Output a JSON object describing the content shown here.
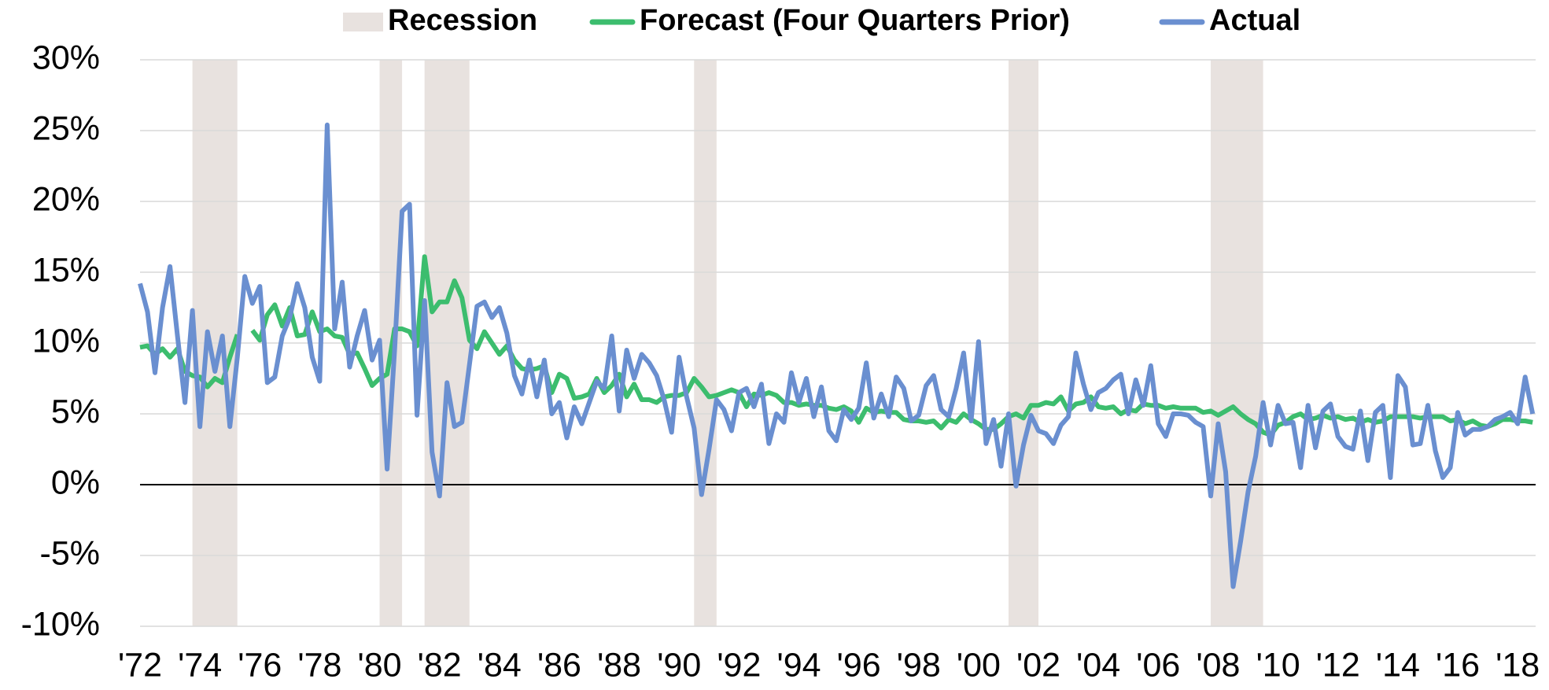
{
  "chart_data": {
    "type": "line",
    "recessions": {
      "name": "Recession",
      "color": "#e8e2df",
      "spans": [
        [
          1973.75,
          1975.25
        ],
        [
          1980.0,
          1980.75
        ],
        [
          1981.5,
          1983.0
        ],
        [
          1990.5,
          1991.25
        ],
        [
          2001.0,
          2002.0
        ],
        [
          2007.75,
          2009.5
        ]
      ]
    },
    "x": [
      1972,
      1972.25,
      1972.5,
      1972.75,
      1973,
      1973.25,
      1973.5,
      1973.75,
      1974,
      1974.25,
      1974.5,
      1974.75,
      1975,
      1975.25,
      1975.5,
      1975.75,
      1976,
      1976.25,
      1976.5,
      1976.75,
      1977,
      1977.25,
      1977.5,
      1977.75,
      1978,
      1978.25,
      1978.5,
      1978.75,
      1979,
      1979.25,
      1979.5,
      1979.75,
      1980,
      1980.25,
      1980.5,
      1980.75,
      1981,
      1981.25,
      1981.5,
      1981.75,
      1982,
      1982.25,
      1982.5,
      1982.75,
      1983,
      1983.25,
      1983.5,
      1983.75,
      1984,
      1984.25,
      1984.5,
      1984.75,
      1985,
      1985.25,
      1985.5,
      1985.75,
      1986,
      1986.25,
      1986.5,
      1986.75,
      1987,
      1987.25,
      1987.5,
      1987.75,
      1988,
      1988.25,
      1988.5,
      1988.75,
      1989,
      1989.25,
      1989.5,
      1989.75,
      1990,
      1990.25,
      1990.5,
      1990.75,
      1991,
      1991.25,
      1991.5,
      1991.75,
      1992,
      1992.25,
      1992.5,
      1992.75,
      1993,
      1993.25,
      1993.5,
      1993.75,
      1994,
      1994.25,
      1994.5,
      1994.75,
      1995,
      1995.25,
      1995.5,
      1995.75,
      1996,
      1996.25,
      1996.5,
      1996.75,
      1997,
      1997.25,
      1997.5,
      1997.75,
      1998,
      1998.25,
      1998.5,
      1998.75,
      1999,
      1999.25,
      1999.5,
      1999.75,
      2000,
      2000.25,
      2000.5,
      2000.75,
      2001,
      2001.25,
      2001.5,
      2001.75,
      2002,
      2002.25,
      2002.5,
      2002.75,
      2003,
      2003.25,
      2003.5,
      2003.75,
      2004,
      2004.25,
      2004.5,
      2004.75,
      2005,
      2005.25,
      2005.5,
      2005.75,
      2006,
      2006.25,
      2006.5,
      2006.75,
      2007,
      2007.25,
      2007.5,
      2007.75,
      2008,
      2008.25,
      2008.5,
      2008.75,
      2009,
      2009.25,
      2009.5,
      2009.75,
      2010,
      2010.25,
      2010.5,
      2010.75,
      2011,
      2011.25,
      2011.5,
      2011.75,
      2012,
      2012.25,
      2012.5,
      2012.75,
      2013,
      2013.25,
      2013.5,
      2013.75,
      2014,
      2014.25,
      2014.5,
      2014.75,
      2015,
      2015.25,
      2015.5,
      2015.75,
      2016,
      2016.25,
      2016.5,
      2016.75,
      2017,
      2017.25,
      2017.5,
      2017.75,
      2018,
      2018.25,
      2018.5
    ],
    "series": [
      {
        "name": "Forecast (Four Quarters Prior)",
        "color": "#3cbd6e",
        "values": [
          9.7,
          9.8,
          9.2,
          9.6,
          9.0,
          9.6,
          8.0,
          7.7,
          7.6,
          6.9,
          7.5,
          7.2,
          9.0,
          10.6,
          null,
          10.9,
          10.2,
          12.0,
          12.7,
          11.2,
          12.5,
          10.5,
          10.6,
          12.2,
          10.8,
          11.0,
          10.5,
          10.4,
          9.2,
          9.3,
          8.2,
          7.0,
          7.5,
          7.8,
          11.0,
          11.0,
          10.8,
          9.8,
          16.1,
          12.2,
          12.9,
          12.9,
          14.4,
          13.2,
          10.2,
          9.6,
          10.8,
          10.0,
          9.2,
          9.8,
          8.8,
          8.2,
          8.1,
          8.2,
          8.4,
          6.5,
          7.8,
          7.5,
          6.1,
          6.2,
          6.4,
          7.5,
          6.5,
          7.0,
          7.8,
          6.2,
          7.1,
          6.0,
          6.0,
          5.8,
          6.2,
          6.3,
          6.3,
          6.5,
          7.5,
          6.9,
          6.2,
          6.3,
          6.5,
          6.7,
          6.5,
          5.5,
          6.4,
          6.3,
          6.5,
          6.3,
          5.8,
          5.8,
          5.6,
          5.7,
          5.6,
          5.6,
          5.4,
          5.3,
          5.5,
          5.2,
          4.4,
          5.4,
          5.1,
          5.2,
          5.1,
          5.1,
          4.6,
          4.5,
          4.5,
          4.4,
          4.5,
          4.0,
          4.6,
          4.4,
          5.0,
          4.6,
          4.3,
          3.9,
          3.9,
          4.3,
          4.8,
          5.0,
          4.7,
          5.6,
          5.6,
          5.8,
          5.7,
          6.2,
          5.2,
          5.7,
          5.8,
          6.2,
          5.5,
          5.4,
          5.5,
          5.0,
          5.3,
          5.2,
          5.7,
          5.6,
          5.6,
          5.4,
          5.5,
          5.4,
          5.4,
          5.4,
          5.1,
          5.2,
          4.9,
          5.2,
          5.5,
          5.0,
          4.6,
          4.3,
          3.7,
          3.5,
          4.2,
          4.4,
          4.8,
          5.0,
          4.6,
          4.7,
          4.9,
          4.7,
          4.8,
          4.6,
          4.7,
          4.4,
          4.6,
          4.4,
          4.5,
          4.8,
          4.8,
          4.8,
          4.8,
          4.7,
          4.8,
          4.8,
          4.8,
          4.5,
          4.6,
          4.3,
          4.5,
          4.2,
          4.1,
          4.3,
          4.6,
          4.6,
          4.5,
          4.5,
          4.4
        ]
      },
      {
        "name": "Actual",
        "color": "#6a8fd0",
        "values": [
          14.2,
          12.2,
          7.9,
          12.5,
          15.4,
          10.5,
          5.8,
          12.3,
          4.1,
          10.8,
          8.0,
          10.5,
          4.1,
          9.0,
          14.7,
          12.8,
          14.0,
          7.2,
          7.6,
          10.5,
          11.8,
          14.2,
          12.5,
          9.0,
          7.3,
          25.4,
          11.0,
          14.3,
          8.3,
          10.5,
          12.3,
          8.8,
          10.2,
          1.1,
          9.5,
          19.3,
          19.8,
          4.9,
          13.0,
          2.3,
          -0.8,
          7.2,
          4.1,
          4.4,
          8.5,
          12.6,
          12.9,
          11.8,
          12.5,
          10.7,
          7.7,
          6.4,
          8.8,
          6.2,
          8.8,
          5.0,
          5.8,
          3.3,
          5.5,
          4.3,
          5.8,
          7.3,
          6.8,
          10.5,
          5.2,
          9.5,
          7.5,
          9.2,
          8.6,
          7.7,
          6.0,
          3.7,
          9.0,
          6.2,
          4.0,
          -0.7,
          2.5,
          6.0,
          5.3,
          3.8,
          6.5,
          6.8,
          5.5,
          7.1,
          2.9,
          5.0,
          4.4,
          7.9,
          5.8,
          7.5,
          4.8,
          6.9,
          3.8,
          3.1,
          5.3,
          4.6,
          5.4,
          8.6,
          4.7,
          6.4,
          4.8,
          7.6,
          6.8,
          4.5,
          4.9,
          7.0,
          7.7,
          5.3,
          4.8,
          6.8,
          9.3,
          4.5,
          10.1,
          2.9,
          4.6,
          1.3,
          5.0,
          -0.1,
          2.8,
          4.9,
          3.8,
          3.6,
          2.9,
          4.2,
          4.8,
          9.3,
          7.1,
          5.3,
          6.5,
          6.8,
          7.4,
          7.8,
          5.0,
          7.4,
          5.6,
          8.4,
          4.3,
          3.4,
          5.0,
          5.0,
          4.9,
          4.4,
          4.1,
          -0.8,
          4.3,
          0.9,
          -7.2,
          -4.0,
          -0.5,
          2.0,
          5.8,
          2.8,
          5.6,
          4.3,
          4.4,
          1.2,
          5.6,
          2.6,
          5.2,
          5.7,
          3.4,
          2.7,
          2.5,
          5.2,
          1.7,
          5.1,
          5.6,
          0.5,
          7.7,
          6.9,
          2.8,
          2.9,
          5.6,
          2.4,
          0.5,
          1.2,
          5.1,
          3.5,
          3.9,
          3.9,
          4.1,
          4.6,
          4.8,
          5.1,
          4.3,
          7.6,
          5.0
        ]
      }
    ],
    "xlim": [
      1972,
      2018.6
    ],
    "xticks": [
      {
        "value": 1972,
        "label": "'72"
      },
      {
        "value": 1974,
        "label": "'74"
      },
      {
        "value": 1976,
        "label": "'76"
      },
      {
        "value": 1978,
        "label": "'78"
      },
      {
        "value": 1980,
        "label": "'80"
      },
      {
        "value": 1982,
        "label": "'82"
      },
      {
        "value": 1984,
        "label": "'84"
      },
      {
        "value": 1986,
        "label": "'86"
      },
      {
        "value": 1988,
        "label": "'88"
      },
      {
        "value": 1990,
        "label": "'90"
      },
      {
        "value": 1992,
        "label": "'92"
      },
      {
        "value": 1994,
        "label": "'94"
      },
      {
        "value": 1996,
        "label": "'96"
      },
      {
        "value": 1998,
        "label": "'98"
      },
      {
        "value": 2000,
        "label": "'00"
      },
      {
        "value": 2002,
        "label": "'02"
      },
      {
        "value": 2004,
        "label": "'04"
      },
      {
        "value": 2006,
        "label": "'06"
      },
      {
        "value": 2008,
        "label": "'08"
      },
      {
        "value": 2010,
        "label": "'10"
      },
      {
        "value": 2012,
        "label": "'12"
      },
      {
        "value": 2014,
        "label": "'14"
      },
      {
        "value": 2016,
        "label": "'16"
      },
      {
        "value": 2018,
        "label": "'18"
      }
    ],
    "ylim": [
      -10,
      30
    ],
    "yticks": [
      {
        "value": -10,
        "label": "-10%"
      },
      {
        "value": -5,
        "label": "-5%"
      },
      {
        "value": 0,
        "label": "0%"
      },
      {
        "value": 5,
        "label": "5%"
      },
      {
        "value": 10,
        "label": "10%"
      },
      {
        "value": 15,
        "label": "15%"
      },
      {
        "value": 20,
        "label": "20%"
      },
      {
        "value": 25,
        "label": "25%"
      },
      {
        "value": 30,
        "label": "30%"
      }
    ],
    "grid": true
  }
}
